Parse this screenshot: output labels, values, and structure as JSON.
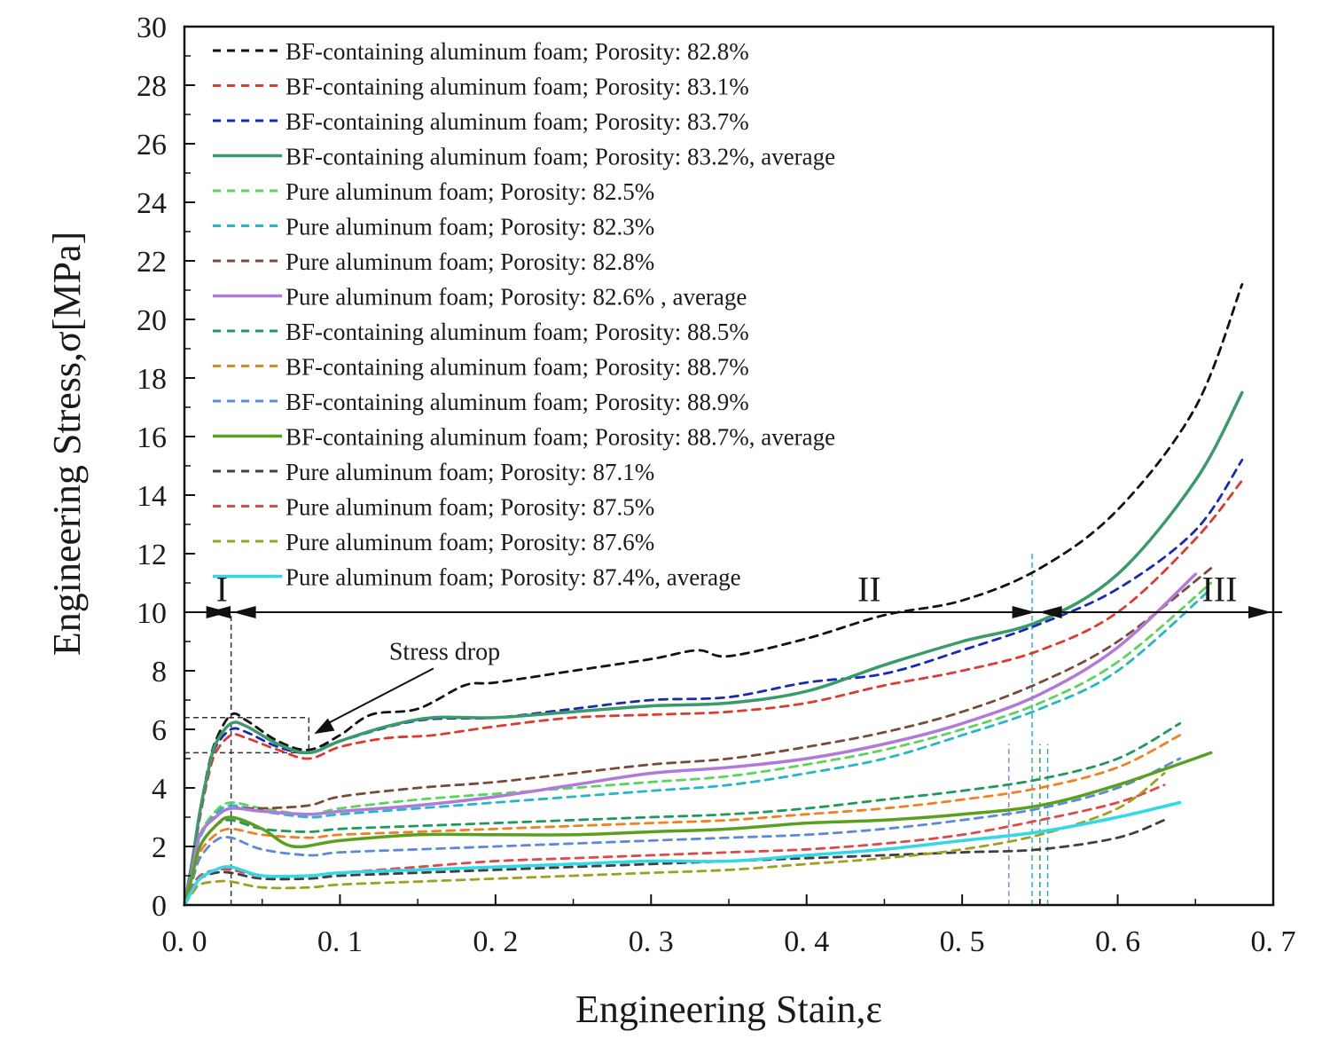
{
  "chart_data": {
    "type": "line",
    "title": "",
    "xlabel": "Engineering Stain,ε",
    "ylabel": "Engineering Stress,σ[MPa]",
    "xlim": [
      0.0,
      0.7
    ],
    "ylim": [
      0,
      30
    ],
    "x_ticks": [
      0.0,
      0.1,
      0.2,
      0.3,
      0.4,
      0.5,
      0.6,
      0.7
    ],
    "x_tick_labels": [
      "0. 0",
      "0. 1",
      "0. 2",
      "0. 3",
      "0. 4",
      "0. 5",
      "0. 6",
      "0. 7"
    ],
    "y_ticks": [
      0,
      2,
      4,
      6,
      8,
      10,
      12,
      14,
      16,
      18,
      20,
      22,
      24,
      26,
      28,
      30
    ],
    "y_tick_labels": [
      "0",
      "2",
      "4",
      "6",
      "8",
      "10",
      "12",
      "14",
      "16",
      "18",
      "20",
      "22",
      "24",
      "26",
      "28",
      "30"
    ],
    "grid": false,
    "legend_position": "top-left",
    "series": [
      {
        "name": "BF-containing aluminum foam;  Porosity:  82.8%",
        "color": "#111111",
        "style": "dashed",
        "x": [
          0.0,
          0.005,
          0.01,
          0.015,
          0.02,
          0.03,
          0.04,
          0.06,
          0.08,
          0.1,
          0.12,
          0.15,
          0.18,
          0.2,
          0.25,
          0.3,
          0.33,
          0.35,
          0.4,
          0.45,
          0.5,
          0.55,
          0.6,
          0.65,
          0.68
        ],
        "values": [
          0,
          1.5,
          3.2,
          4.6,
          5.6,
          6.5,
          6.3,
          5.6,
          5.3,
          5.8,
          6.5,
          6.7,
          7.5,
          7.6,
          8.0,
          8.4,
          8.7,
          8.5,
          9.1,
          9.9,
          10.4,
          11.5,
          13.5,
          17.0,
          21.2
        ]
      },
      {
        "name": "BF-containing aluminum foam;  Porosity:  83.1%",
        "color": "#e0392f",
        "style": "dashed",
        "x": [
          0.0,
          0.005,
          0.01,
          0.015,
          0.02,
          0.03,
          0.04,
          0.06,
          0.08,
          0.1,
          0.13,
          0.16,
          0.2,
          0.25,
          0.3,
          0.35,
          0.4,
          0.45,
          0.5,
          0.55,
          0.6,
          0.65,
          0.68
        ],
        "values": [
          0,
          1.4,
          3.0,
          4.3,
          5.2,
          5.8,
          5.7,
          5.3,
          5.0,
          5.4,
          5.7,
          5.8,
          6.1,
          6.4,
          6.5,
          6.6,
          6.9,
          7.5,
          8.0,
          8.7,
          10.0,
          12.5,
          14.5
        ]
      },
      {
        "name": "BF-containing aluminum foam;  Porosity:  83.7%",
        "color": "#1a28b8",
        "style": "dashed",
        "x": [
          0.0,
          0.005,
          0.01,
          0.015,
          0.02,
          0.03,
          0.04,
          0.06,
          0.08,
          0.1,
          0.15,
          0.2,
          0.25,
          0.3,
          0.35,
          0.4,
          0.45,
          0.5,
          0.55,
          0.6,
          0.65,
          0.68
        ],
        "values": [
          0,
          1.5,
          3.1,
          4.5,
          5.4,
          6.0,
          5.9,
          5.4,
          5.2,
          5.6,
          6.3,
          6.4,
          6.7,
          7.0,
          7.1,
          7.6,
          7.9,
          8.7,
          9.6,
          10.8,
          12.8,
          15.2
        ]
      },
      {
        "name": "BF-containing aluminum foam;  Porosity:  83.2%, average",
        "color": "#3a9a6a",
        "style": "solid",
        "x": [
          0.0,
          0.005,
          0.01,
          0.015,
          0.02,
          0.03,
          0.04,
          0.06,
          0.08,
          0.1,
          0.13,
          0.16,
          0.2,
          0.25,
          0.3,
          0.35,
          0.4,
          0.45,
          0.5,
          0.55,
          0.6,
          0.65,
          0.68
        ],
        "values": [
          0,
          1.5,
          3.2,
          4.5,
          5.5,
          6.2,
          6.1,
          5.5,
          5.2,
          5.6,
          6.1,
          6.4,
          6.4,
          6.6,
          6.8,
          6.9,
          7.3,
          8.2,
          9.0,
          9.7,
          11.3,
          14.5,
          17.5
        ]
      },
      {
        "name": "Pure aluminum foam;  Porosity:  82.5%",
        "color": "#5ad45a",
        "style": "dashed",
        "x": [
          0.0,
          0.005,
          0.01,
          0.02,
          0.03,
          0.05,
          0.08,
          0.1,
          0.15,
          0.2,
          0.25,
          0.3,
          0.35,
          0.4,
          0.45,
          0.5,
          0.55,
          0.6,
          0.66
        ],
        "values": [
          0,
          1.2,
          2.4,
          3.2,
          3.5,
          3.3,
          3.1,
          3.3,
          3.6,
          3.8,
          4.0,
          4.2,
          4.4,
          4.8,
          5.3,
          6.0,
          6.9,
          8.3,
          11.0
        ]
      },
      {
        "name": "Pure aluminum foam;  Porosity:  82.3%",
        "color": "#22b8c8",
        "style": "dashed",
        "x": [
          0.0,
          0.005,
          0.01,
          0.02,
          0.03,
          0.05,
          0.08,
          0.1,
          0.15,
          0.2,
          0.25,
          0.3,
          0.35,
          0.4,
          0.45,
          0.5,
          0.55,
          0.6,
          0.66
        ],
        "values": [
          0,
          1.2,
          2.3,
          3.1,
          3.4,
          3.2,
          3.0,
          3.1,
          3.3,
          3.5,
          3.7,
          3.9,
          4.1,
          4.5,
          5.0,
          5.8,
          6.7,
          8.0,
          10.8
        ]
      },
      {
        "name": "Pure aluminum foam;  Porosity:  82.8%",
        "color": "#7a4a3a",
        "style": "dashed",
        "x": [
          0.0,
          0.005,
          0.01,
          0.02,
          0.03,
          0.05,
          0.08,
          0.1,
          0.15,
          0.2,
          0.25,
          0.3,
          0.35,
          0.4,
          0.45,
          0.5,
          0.55,
          0.6,
          0.66
        ],
        "values": [
          0,
          1.2,
          2.4,
          3.0,
          3.3,
          3.3,
          3.4,
          3.7,
          4.0,
          4.2,
          4.5,
          4.8,
          5.0,
          5.4,
          5.9,
          6.6,
          7.6,
          9.0,
          11.5
        ]
      },
      {
        "name": "Pure aluminum foam;  Porosity:  82.6% , average",
        "color": "#b07ad8",
        "style": "solid",
        "x": [
          0.0,
          0.005,
          0.01,
          0.02,
          0.03,
          0.05,
          0.08,
          0.1,
          0.15,
          0.2,
          0.25,
          0.3,
          0.35,
          0.4,
          0.45,
          0.5,
          0.55,
          0.6,
          0.65
        ],
        "values": [
          0,
          1.2,
          2.4,
          3.0,
          3.3,
          3.2,
          3.1,
          3.2,
          3.4,
          3.7,
          4.1,
          4.5,
          4.7,
          5.0,
          5.5,
          6.2,
          7.2,
          8.8,
          11.3
        ]
      },
      {
        "name": "BF-containing aluminum foam;  Porosity:  88.5%",
        "color": "#1f9a5a",
        "style": "dashed",
        "x": [
          0.0,
          0.005,
          0.01,
          0.02,
          0.03,
          0.05,
          0.08,
          0.1,
          0.15,
          0.2,
          0.25,
          0.3,
          0.35,
          0.4,
          0.45,
          0.5,
          0.55,
          0.6,
          0.64
        ],
        "values": [
          0,
          1.0,
          2.0,
          2.7,
          2.9,
          2.6,
          2.5,
          2.6,
          2.7,
          2.8,
          2.9,
          3.0,
          3.1,
          3.3,
          3.6,
          3.9,
          4.3,
          5.0,
          6.2
        ]
      },
      {
        "name": "BF-containing aluminum foam;  Porosity:  88.7%",
        "color": "#f08020",
        "style": "dashed",
        "x": [
          0.0,
          0.005,
          0.01,
          0.02,
          0.03,
          0.05,
          0.08,
          0.1,
          0.15,
          0.2,
          0.25,
          0.3,
          0.35,
          0.4,
          0.45,
          0.5,
          0.55,
          0.6,
          0.64
        ],
        "values": [
          0,
          0.9,
          1.8,
          2.4,
          2.6,
          2.4,
          2.3,
          2.4,
          2.5,
          2.6,
          2.7,
          2.8,
          2.9,
          3.1,
          3.3,
          3.6,
          4.0,
          4.7,
          5.8
        ]
      },
      {
        "name": "BF-containing aluminum foam;  Porosity:  88.9%",
        "color": "#5a8ad8",
        "style": "dashed",
        "x": [
          0.0,
          0.005,
          0.01,
          0.02,
          0.03,
          0.05,
          0.08,
          0.1,
          0.15,
          0.2,
          0.25,
          0.3,
          0.35,
          0.4,
          0.45,
          0.5,
          0.55,
          0.6,
          0.64
        ],
        "values": [
          0,
          0.8,
          1.6,
          2.2,
          2.3,
          1.9,
          1.7,
          1.8,
          1.9,
          2.0,
          2.1,
          2.2,
          2.3,
          2.4,
          2.6,
          2.9,
          3.3,
          4.0,
          5.0
        ]
      },
      {
        "name": "BF-containing aluminum foam;  Porosity:  88.7%, average",
        "color": "#5aa020",
        "style": "solid",
        "x": [
          0.0,
          0.005,
          0.01,
          0.02,
          0.03,
          0.05,
          0.07,
          0.1,
          0.15,
          0.2,
          0.25,
          0.3,
          0.35,
          0.4,
          0.45,
          0.5,
          0.55,
          0.6,
          0.66
        ],
        "values": [
          0,
          1.0,
          2.0,
          2.7,
          3.0,
          2.6,
          2.0,
          2.2,
          2.4,
          2.4,
          2.4,
          2.5,
          2.6,
          2.8,
          2.9,
          3.1,
          3.4,
          4.1,
          5.2
        ]
      },
      {
        "name": "Pure aluminum foam;  Porosity:  87.1%",
        "color": "#404040",
        "style": "dashed",
        "x": [
          0.0,
          0.005,
          0.01,
          0.02,
          0.03,
          0.05,
          0.08,
          0.1,
          0.15,
          0.2,
          0.25,
          0.3,
          0.35,
          0.4,
          0.45,
          0.5,
          0.55,
          0.6,
          0.63
        ],
        "values": [
          0,
          0.5,
          0.9,
          1.1,
          1.1,
          0.9,
          0.9,
          1.0,
          1.1,
          1.2,
          1.3,
          1.4,
          1.5,
          1.6,
          1.7,
          1.8,
          1.9,
          2.3,
          2.9
        ]
      },
      {
        "name": "Pure aluminum foam;  Porosity:  87.5%",
        "color": "#e04848",
        "style": "dashed",
        "x": [
          0.0,
          0.005,
          0.01,
          0.02,
          0.03,
          0.05,
          0.08,
          0.1,
          0.15,
          0.2,
          0.25,
          0.3,
          0.35,
          0.4,
          0.45,
          0.5,
          0.55,
          0.6,
          0.63
        ],
        "values": [
          0,
          0.6,
          1.0,
          1.2,
          1.2,
          1.0,
          1.0,
          1.1,
          1.3,
          1.5,
          1.6,
          1.7,
          1.8,
          1.9,
          2.1,
          2.4,
          2.9,
          3.5,
          4.1
        ]
      },
      {
        "name": "Pure aluminum foam;  Porosity:  87.6%",
        "color": "#a0a020",
        "style": "dashed",
        "x": [
          0.0,
          0.005,
          0.01,
          0.02,
          0.03,
          0.05,
          0.08,
          0.1,
          0.15,
          0.2,
          0.25,
          0.3,
          0.35,
          0.4,
          0.45,
          0.5,
          0.55,
          0.6,
          0.63
        ],
        "values": [
          0,
          0.4,
          0.7,
          0.8,
          0.8,
          0.6,
          0.6,
          0.7,
          0.8,
          0.9,
          1.0,
          1.1,
          1.2,
          1.4,
          1.6,
          1.9,
          2.4,
          3.3,
          4.5
        ]
      },
      {
        "name": "Pure aluminum foam;  Porosity:  87.4%, average",
        "color": "#30d8e8",
        "style": "solid",
        "x": [
          0.0,
          0.005,
          0.01,
          0.02,
          0.03,
          0.05,
          0.08,
          0.1,
          0.15,
          0.2,
          0.25,
          0.3,
          0.35,
          0.4,
          0.45,
          0.5,
          0.55,
          0.6,
          0.64
        ],
        "values": [
          0,
          0.5,
          0.9,
          1.2,
          1.3,
          1.0,
          1.0,
          1.1,
          1.2,
          1.3,
          1.4,
          1.5,
          1.5,
          1.7,
          1.9,
          2.2,
          2.5,
          3.0,
          3.5
        ]
      }
    ],
    "annotations": {
      "stress_drop_label": "Stress drop",
      "stress_drop_target": {
        "x": 0.08,
        "y": 5.3
      },
      "stress_drop_text_at": {
        "x": 0.2,
        "y": 8.2
      },
      "peak_ref": {
        "x": 0.03,
        "y": 6.4
      },
      "valley_ref": {
        "x": 0.08,
        "y": 5.2
      },
      "region_I_label": "I",
      "region_II_label": "II",
      "region_III_label": "III",
      "region_line_y": 10,
      "region_I_end_x": 0.03,
      "region_II_end_x": 0.555,
      "region_I_label_at": {
        "x": 0.015,
        "y": 10.5
      },
      "region_II_label_at": {
        "x": 0.43,
        "y": 10.5
      },
      "region_III_label_at": {
        "x": 0.645,
        "y": 10.5
      },
      "vertical_markers": [
        {
          "x": 0.03,
          "color": "#333333",
          "ymax": 10
        },
        {
          "x": 0.53,
          "color": "#b07ad8",
          "ymax": 5.5
        },
        {
          "x": 0.545,
          "color": "#22b8c8",
          "ymax": 12
        },
        {
          "x": 0.55,
          "color": "#3a9a6a",
          "ymax": 5.5
        },
        {
          "x": 0.555,
          "color": "#22b8c8",
          "ymax": 5.5
        }
      ]
    }
  }
}
